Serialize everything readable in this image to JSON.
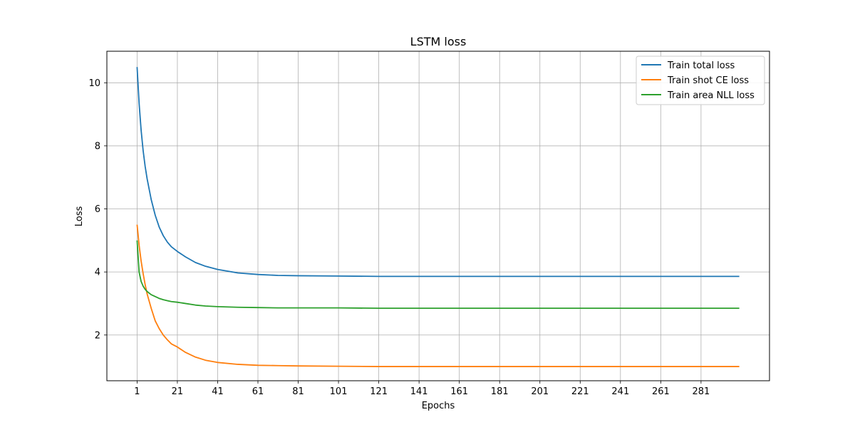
{
  "chart_data": {
    "type": "line",
    "title": "LSTM loss",
    "xlabel": "Epochs",
    "ylabel": "Loss",
    "xlim": [
      -14,
      315
    ],
    "ylim": [
      0.55,
      11.0
    ],
    "xticks": [
      1,
      21,
      41,
      61,
      81,
      101,
      121,
      141,
      161,
      181,
      201,
      221,
      241,
      261,
      281
    ],
    "yticks": [
      2,
      4,
      6,
      8,
      10
    ],
    "grid": true,
    "legend_position": "upper right",
    "x": [
      1,
      2,
      3,
      4,
      5,
      6,
      8,
      10,
      12,
      14,
      16,
      18,
      21,
      25,
      30,
      35,
      41,
      51,
      61,
      71,
      81,
      101,
      121,
      141,
      161,
      181,
      201,
      221,
      241,
      261,
      281,
      300
    ],
    "series": [
      {
        "name": "Train total loss",
        "color": "#1f77b4",
        "values": [
          10.5,
          9.35,
          8.5,
          7.85,
          7.35,
          6.95,
          6.3,
          5.8,
          5.42,
          5.15,
          4.95,
          4.8,
          4.65,
          4.48,
          4.3,
          4.18,
          4.08,
          3.97,
          3.92,
          3.89,
          3.88,
          3.87,
          3.86,
          3.86,
          3.86,
          3.86,
          3.86,
          3.86,
          3.86,
          3.86,
          3.86,
          3.86
        ]
      },
      {
        "name": "Train shot CE loss",
        "color": "#ff7f0e",
        "values": [
          5.5,
          4.85,
          4.35,
          3.95,
          3.6,
          3.3,
          2.85,
          2.45,
          2.2,
          2.0,
          1.85,
          1.72,
          1.62,
          1.45,
          1.3,
          1.2,
          1.13,
          1.07,
          1.04,
          1.03,
          1.02,
          1.01,
          1.0,
          1.0,
          1.0,
          1.0,
          1.0,
          1.0,
          1.0,
          1.0,
          1.0,
          1.0
        ]
      },
      {
        "name": "Train area NLL loss",
        "color": "#2ca02c",
        "values": [
          5.0,
          4.0,
          3.7,
          3.55,
          3.45,
          3.38,
          3.28,
          3.22,
          3.16,
          3.12,
          3.09,
          3.06,
          3.04,
          3.0,
          2.95,
          2.92,
          2.9,
          2.88,
          2.87,
          2.86,
          2.86,
          2.86,
          2.85,
          2.85,
          2.85,
          2.85,
          2.85,
          2.85,
          2.85,
          2.85,
          2.85,
          2.85
        ]
      }
    ]
  }
}
